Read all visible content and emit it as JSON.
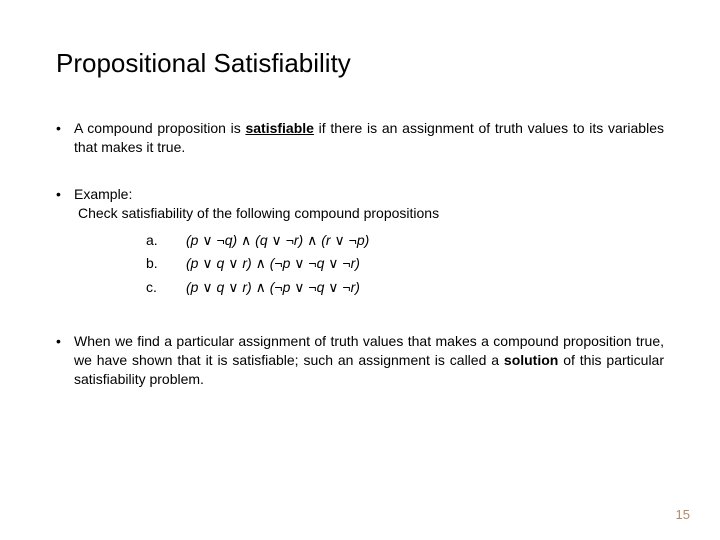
{
  "title": "Propositional Satisfiability",
  "bullet1_pre": "A compound proposition is ",
  "bullet1_key": "satisfiable",
  "bullet1_post": " if there is an assignment of truth values to its variables that makes it true.",
  "example_label": "Example:",
  "example_intro": "Check satisfiability of the following compound propositions",
  "items": {
    "a": {
      "label": "a.",
      "expr": "(p ∨ ¬q) ∧ (q ∨ ¬r) ∧ (r ∨ ¬p)"
    },
    "b": {
      "label": "b.",
      "expr": "(p ∨ q ∨ r) ∧ (¬p ∨ ¬q ∨ ¬r)"
    },
    "c": {
      "label": "c.",
      "expr": "(p ∨ q ∨ r) ∧ (¬p ∨ ¬q ∨ ¬r)"
    }
  },
  "bullet3_pre": "When we find a particular assignment of truth values that makes a compound proposition true, we have shown that it is satisfiable; such an assignment is called a ",
  "bullet3_key": "solution",
  "bullet3_post": " of this particular satisfiability problem.",
  "page_number": "15",
  "colors": {
    "text": "#000000",
    "background": "#ffffff",
    "pagenum": "#b48a6a"
  },
  "fontsize": {
    "title": 26,
    "body": 14,
    "pagenum": 13
  }
}
